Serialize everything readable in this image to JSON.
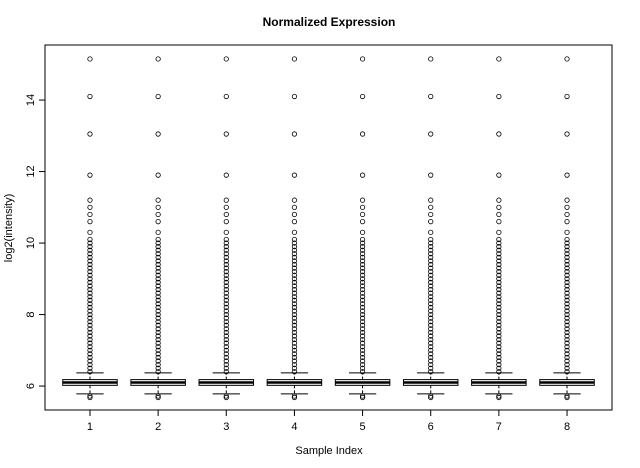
{
  "chart_data": {
    "type": "boxplot",
    "title": "Normalized Expression",
    "x_label": "Sample Index",
    "y_label": "log2(intensity)",
    "categories": [
      "1",
      "2",
      "3",
      "4",
      "5",
      "6",
      "7",
      "8"
    ],
    "ylim": [
      5.33,
      15.54
    ],
    "yticks": [
      6,
      8,
      10,
      12,
      14
    ],
    "color": "#000000",
    "boxes": [
      {
        "whislo": 5.78,
        "q1": 6.02,
        "med": 6.1,
        "q3": 6.18,
        "whishi": 6.37,
        "fliers": [
          5.68,
          5.72,
          6.4,
          6.5,
          6.6,
          6.7,
          6.8,
          6.9,
          7.0,
          7.1,
          7.2,
          7.3,
          7.4,
          7.5,
          7.6,
          7.7,
          7.8,
          7.9,
          8.0,
          8.1,
          8.2,
          8.3,
          8.4,
          8.5,
          8.6,
          8.7,
          8.8,
          8.9,
          9.0,
          9.1,
          9.2,
          9.3,
          9.4,
          9.5,
          9.6,
          9.7,
          9.8,
          9.9,
          10.0,
          10.1,
          10.3,
          10.6,
          10.8,
          11.0,
          11.2,
          11.9,
          13.05,
          14.1,
          15.15
        ]
      },
      {
        "whislo": 5.78,
        "q1": 6.02,
        "med": 6.1,
        "q3": 6.18,
        "whishi": 6.37,
        "fliers": [
          5.68,
          5.72,
          6.4,
          6.5,
          6.6,
          6.7,
          6.8,
          6.9,
          7.0,
          7.1,
          7.2,
          7.3,
          7.4,
          7.5,
          7.6,
          7.7,
          7.8,
          7.9,
          8.0,
          8.1,
          8.2,
          8.3,
          8.4,
          8.5,
          8.6,
          8.7,
          8.8,
          8.9,
          9.0,
          9.1,
          9.2,
          9.3,
          9.4,
          9.5,
          9.6,
          9.7,
          9.8,
          9.9,
          10.0,
          10.1,
          10.3,
          10.6,
          10.8,
          11.0,
          11.2,
          11.9,
          13.05,
          14.1,
          15.15
        ]
      },
      {
        "whislo": 5.78,
        "q1": 6.02,
        "med": 6.1,
        "q3": 6.18,
        "whishi": 6.37,
        "fliers": [
          5.68,
          5.72,
          6.4,
          6.5,
          6.6,
          6.7,
          6.8,
          6.9,
          7.0,
          7.1,
          7.2,
          7.3,
          7.4,
          7.5,
          7.6,
          7.7,
          7.8,
          7.9,
          8.0,
          8.1,
          8.2,
          8.3,
          8.4,
          8.5,
          8.6,
          8.7,
          8.8,
          8.9,
          9.0,
          9.1,
          9.2,
          9.3,
          9.4,
          9.5,
          9.6,
          9.7,
          9.8,
          9.9,
          10.0,
          10.1,
          10.3,
          10.6,
          10.8,
          11.0,
          11.2,
          11.9,
          13.05,
          14.1,
          15.15
        ]
      },
      {
        "whislo": 5.78,
        "q1": 6.02,
        "med": 6.1,
        "q3": 6.18,
        "whishi": 6.37,
        "fliers": [
          5.68,
          5.72,
          6.4,
          6.5,
          6.6,
          6.7,
          6.8,
          6.9,
          7.0,
          7.1,
          7.2,
          7.3,
          7.4,
          7.5,
          7.6,
          7.7,
          7.8,
          7.9,
          8.0,
          8.1,
          8.2,
          8.3,
          8.4,
          8.5,
          8.6,
          8.7,
          8.8,
          8.9,
          9.0,
          9.1,
          9.2,
          9.3,
          9.4,
          9.5,
          9.6,
          9.7,
          9.8,
          9.9,
          10.0,
          10.1,
          10.3,
          10.6,
          10.8,
          11.0,
          11.2,
          11.9,
          13.05,
          14.1,
          15.15
        ]
      },
      {
        "whislo": 5.78,
        "q1": 6.02,
        "med": 6.1,
        "q3": 6.18,
        "whishi": 6.37,
        "fliers": [
          5.68,
          5.72,
          6.4,
          6.5,
          6.6,
          6.7,
          6.8,
          6.9,
          7.0,
          7.1,
          7.2,
          7.3,
          7.4,
          7.5,
          7.6,
          7.7,
          7.8,
          7.9,
          8.0,
          8.1,
          8.2,
          8.3,
          8.4,
          8.5,
          8.6,
          8.7,
          8.8,
          8.9,
          9.0,
          9.1,
          9.2,
          9.3,
          9.4,
          9.5,
          9.6,
          9.7,
          9.8,
          9.9,
          10.0,
          10.1,
          10.3,
          10.6,
          10.8,
          11.0,
          11.2,
          11.9,
          13.05,
          14.1,
          15.15
        ]
      },
      {
        "whislo": 5.78,
        "q1": 6.02,
        "med": 6.1,
        "q3": 6.18,
        "whishi": 6.37,
        "fliers": [
          5.68,
          5.72,
          6.4,
          6.5,
          6.6,
          6.7,
          6.8,
          6.9,
          7.0,
          7.1,
          7.2,
          7.3,
          7.4,
          7.5,
          7.6,
          7.7,
          7.8,
          7.9,
          8.0,
          8.1,
          8.2,
          8.3,
          8.4,
          8.5,
          8.6,
          8.7,
          8.8,
          8.9,
          9.0,
          9.1,
          9.2,
          9.3,
          9.4,
          9.5,
          9.6,
          9.7,
          9.8,
          9.9,
          10.0,
          10.1,
          10.3,
          10.6,
          10.8,
          11.0,
          11.2,
          11.9,
          13.05,
          14.1,
          15.15
        ]
      },
      {
        "whislo": 5.78,
        "q1": 6.02,
        "med": 6.1,
        "q3": 6.18,
        "whishi": 6.37,
        "fliers": [
          5.68,
          5.72,
          6.4,
          6.5,
          6.6,
          6.7,
          6.8,
          6.9,
          7.0,
          7.1,
          7.2,
          7.3,
          7.4,
          7.5,
          7.6,
          7.7,
          7.8,
          7.9,
          8.0,
          8.1,
          8.2,
          8.3,
          8.4,
          8.5,
          8.6,
          8.7,
          8.8,
          8.9,
          9.0,
          9.1,
          9.2,
          9.3,
          9.4,
          9.5,
          9.6,
          9.7,
          9.8,
          9.9,
          10.0,
          10.1,
          10.3,
          10.6,
          10.8,
          11.0,
          11.2,
          11.9,
          13.05,
          14.1,
          15.15
        ]
      },
      {
        "whislo": 5.78,
        "q1": 6.02,
        "med": 6.1,
        "q3": 6.18,
        "whishi": 6.37,
        "fliers": [
          5.68,
          5.72,
          6.4,
          6.5,
          6.6,
          6.7,
          6.8,
          6.9,
          7.0,
          7.1,
          7.2,
          7.3,
          7.4,
          7.5,
          7.6,
          7.7,
          7.8,
          7.9,
          8.0,
          8.1,
          8.2,
          8.3,
          8.4,
          8.5,
          8.6,
          8.7,
          8.8,
          8.9,
          9.0,
          9.1,
          9.2,
          9.3,
          9.4,
          9.5,
          9.6,
          9.7,
          9.8,
          9.9,
          10.0,
          10.1,
          10.3,
          10.6,
          10.8,
          11.0,
          11.2,
          11.9,
          13.05,
          14.1,
          15.15
        ]
      }
    ]
  }
}
